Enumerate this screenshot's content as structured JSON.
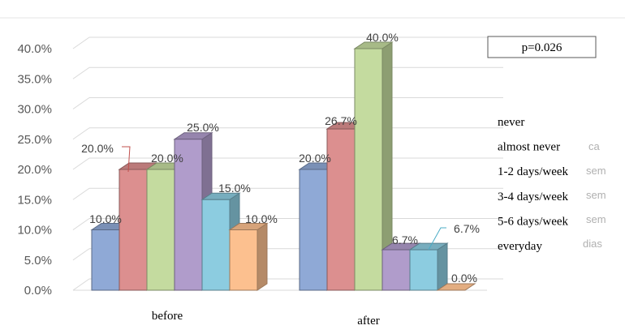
{
  "chart_data": {
    "type": "bar",
    "categories": [
      "before",
      "after"
    ],
    "series": [
      {
        "name": "never",
        "values": [
          10.0,
          20.0
        ],
        "labels": [
          "10.0%",
          "20.0%"
        ]
      },
      {
        "name": "almost never",
        "values": [
          20.0,
          26.7
        ],
        "labels": [
          "20.0%",
          "26.7%"
        ]
      },
      {
        "name": "1-2 days/week",
        "values": [
          20.0,
          40.0
        ],
        "labels": [
          "20.0%",
          "40.0%"
        ]
      },
      {
        "name": "3-4 days/week",
        "values": [
          25.0,
          6.7
        ],
        "labels": [
          "25.0%",
          "6.7%"
        ]
      },
      {
        "name": "5-6 days/week",
        "values": [
          15.0,
          6.7
        ],
        "labels": [
          "15.0%",
          "6.7%"
        ]
      },
      {
        "name": "everyday",
        "values": [
          10.0,
          0.0
        ],
        "labels": [
          "10.0%",
          "0.0%"
        ]
      }
    ],
    "y_ticks": [
      "0.0%",
      "5.0%",
      "10.0%",
      "15.0%",
      "20.0%",
      "25.0%",
      "30.0%",
      "35.0%",
      "40.0%"
    ],
    "ylim": [
      0,
      40
    ],
    "grid": true,
    "legend_position": "right",
    "annotation": "p=0.026",
    "ghost_legend_fragments": [
      "ca",
      "sem",
      "sem",
      "sem",
      "dias"
    ],
    "colors": {
      "never": "#8fa9d6",
      "almost never": "#dc8f8f",
      "1-2 days/week": "#c4db9f",
      "3-4 days/week": "#b09ccb",
      "5-6 days/week": "#8ccce0",
      "everyday": "#fcc08f"
    },
    "title": "",
    "xlabel": "",
    "ylabel": ""
  }
}
